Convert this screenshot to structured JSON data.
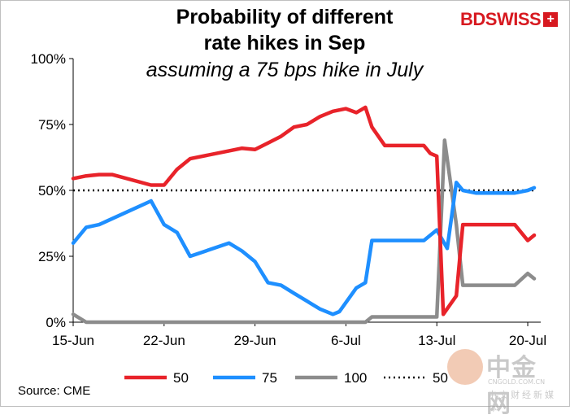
{
  "header": {
    "title_line1": "Probability of different",
    "title_line2": "rate hikes in Sep",
    "subtitle": "assuming a 75 bps hike in July"
  },
  "logo": {
    "text": "BDSWISS",
    "mark": "+"
  },
  "source": "Source: CME",
  "watermark": {
    "cn": "中金网",
    "en": "CNGOLD.COM.CN",
    "sub": "中文财经新媒体"
  },
  "colors": {
    "s50": "#e8232a",
    "s75": "#1e8fff",
    "s100": "#8c8c8c",
    "ref": "#000000"
  },
  "chart_data": {
    "type": "line",
    "title": "Probability of different rate hikes in Sep",
    "subtitle": "assuming a 75 bps hike in July",
    "xlabel": "",
    "ylabel": "",
    "ylim": [
      0,
      100
    ],
    "xlim": [
      0,
      36
    ],
    "x_ticks": [
      {
        "x": 0,
        "label": "15-Jun"
      },
      {
        "x": 7,
        "label": "22-Jun"
      },
      {
        "x": 14,
        "label": "29-Jun"
      },
      {
        "x": 21,
        "label": "6-Jul"
      },
      {
        "x": 28,
        "label": "13-Jul"
      },
      {
        "x": 35,
        "label": "20-Jul"
      }
    ],
    "y_ticks": [
      {
        "y": 0,
        "label": "0%"
      },
      {
        "y": 25,
        "label": "25%"
      },
      {
        "y": 50,
        "label": "50%"
      },
      {
        "y": 75,
        "label": "75%"
      },
      {
        "y": 100,
        "label": "100%"
      }
    ],
    "legend": {
      "position": "bottom"
    },
    "series": [
      {
        "name": "50",
        "color": "#e8232a",
        "dashed": false,
        "x": [
          0,
          1,
          2,
          3,
          6,
          7,
          8,
          9,
          12,
          13,
          14,
          15,
          16,
          17,
          18,
          19,
          20,
          21,
          21.8,
          22.5,
          23,
          24,
          25,
          26,
          27,
          27.5,
          28,
          28.5,
          29.5,
          30,
          31,
          32,
          33,
          34,
          35,
          35.5
        ],
        "y": [
          54.5,
          55.5,
          56,
          56,
          52,
          52,
          58,
          62,
          65,
          66,
          65.5,
          68,
          70.5,
          74,
          75,
          78,
          80,
          81,
          79.5,
          81.5,
          74,
          67,
          67,
          67,
          67,
          64,
          63,
          3,
          10,
          37,
          37,
          37,
          37,
          37,
          31,
          33
        ]
      },
      {
        "name": "75",
        "color": "#1e8fff",
        "dashed": false,
        "x": [
          0,
          1,
          2,
          6,
          7,
          8,
          9,
          12,
          13,
          14,
          15,
          16,
          17,
          18,
          19,
          20,
          20.5,
          21.8,
          22.5,
          23,
          24,
          25,
          26,
          27,
          28,
          28.8,
          29.5,
          30,
          31,
          32,
          33,
          34,
          35,
          35.5
        ],
        "y": [
          30,
          36,
          37,
          46,
          37,
          34,
          25,
          30,
          27,
          23,
          15,
          14,
          11,
          8,
          5,
          3,
          4,
          13,
          15,
          31,
          31,
          31,
          31,
          31,
          35,
          28,
          53,
          50,
          49,
          49,
          49,
          49,
          50,
          51
        ]
      },
      {
        "name": "100",
        "color": "#8c8c8c",
        "dashed": false,
        "x": [
          0,
          1,
          2,
          4,
          6,
          8,
          10,
          12,
          14,
          16,
          18,
          20,
          22.5,
          23,
          24,
          25,
          26,
          27,
          28,
          28.6,
          29.5,
          30,
          31,
          32,
          33,
          34,
          35,
          35.5
        ],
        "y": [
          3,
          0,
          0,
          0,
          0,
          0,
          0,
          0,
          0,
          0,
          0,
          0,
          0,
          2,
          2,
          2,
          2,
          2,
          2,
          69,
          37,
          14,
          14,
          14,
          14,
          14,
          18.5,
          16.5
        ]
      },
      {
        "name": "50",
        "color": "#000000",
        "dashed": true,
        "x": [
          0,
          35.5
        ],
        "y": [
          50,
          50
        ]
      }
    ]
  }
}
